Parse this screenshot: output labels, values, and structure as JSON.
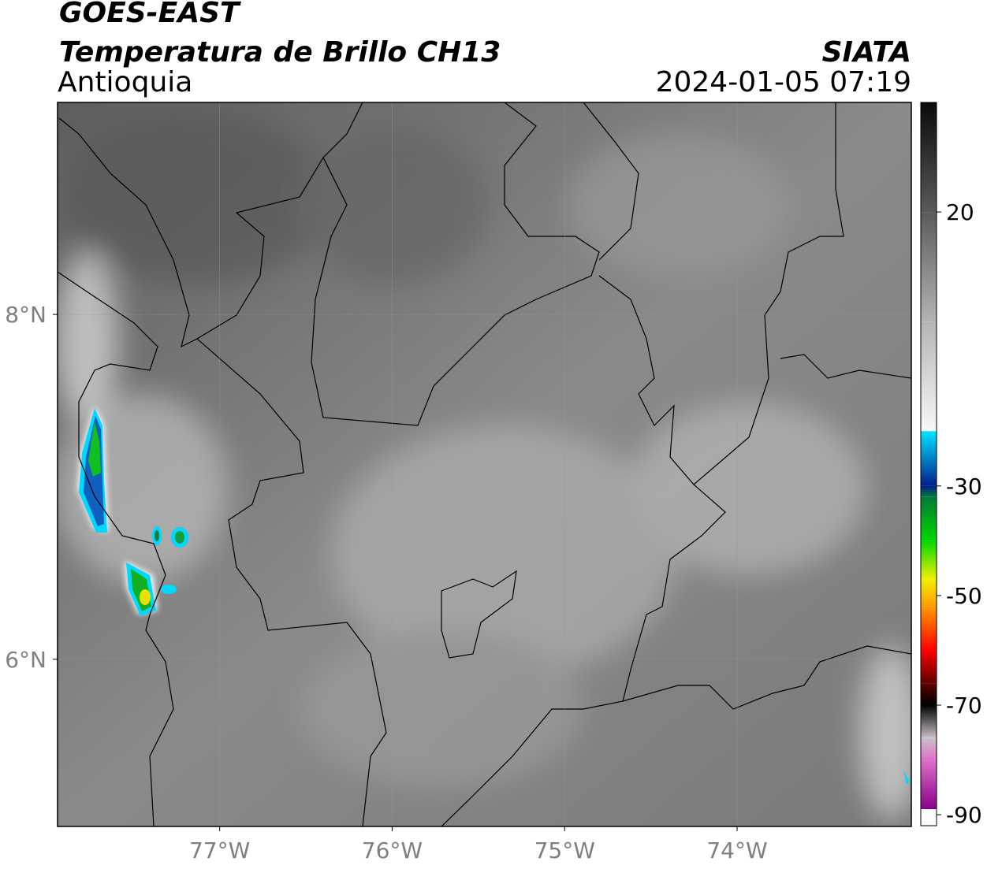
{
  "chart_data": {
    "type": "map",
    "title": "GOES-EAST",
    "subtitle": "Temperatura de Brillo CH13",
    "region": "Antioquia",
    "source": "SIATA",
    "datetime": "2024-01-05 07:19",
    "xlim": [
      -77.94,
      -72.99
    ],
    "ylim": [
      5.03,
      9.23
    ],
    "xticks": [
      {
        "value": -77,
        "label": "77°W"
      },
      {
        "value": -76,
        "label": "76°W"
      },
      {
        "value": -75,
        "label": "75°W"
      },
      {
        "value": -74,
        "label": "74°W"
      }
    ],
    "yticks": [
      {
        "value": 8,
        "label": "8°N"
      },
      {
        "value": 6,
        "label": "6°N"
      }
    ],
    "grid": true,
    "colorbar": {
      "lim": [
        -92,
        40
      ],
      "ticks": [
        20,
        -30,
        -50,
        -70,
        -90
      ],
      "stops": [
        {
          "value": 40,
          "color": "#0a0a0a"
        },
        {
          "value": 20,
          "color": "#5a5a5a"
        },
        {
          "value": 0,
          "color": "#b4b4b4"
        },
        {
          "value": -20,
          "color": "#f8f8f8"
        },
        {
          "value": -20,
          "color": "#00e4ff"
        },
        {
          "value": -30,
          "color": "#00208c"
        },
        {
          "value": -32,
          "color": "#007a3a"
        },
        {
          "value": -40,
          "color": "#00d800"
        },
        {
          "value": -47,
          "color": "#f0f000"
        },
        {
          "value": -52,
          "color": "#ff9a00"
        },
        {
          "value": -60,
          "color": "#ff0000"
        },
        {
          "value": -66,
          "color": "#600000"
        },
        {
          "value": -70,
          "color": "#000000"
        },
        {
          "value": -76,
          "color": "#c8c0c8"
        },
        {
          "value": -80,
          "color": "#e070c8"
        },
        {
          "value": -89,
          "color": "#880088"
        },
        {
          "value": -89,
          "color": "#ffffff"
        },
        {
          "value": -92,
          "color": "#ffffff"
        }
      ]
    }
  }
}
